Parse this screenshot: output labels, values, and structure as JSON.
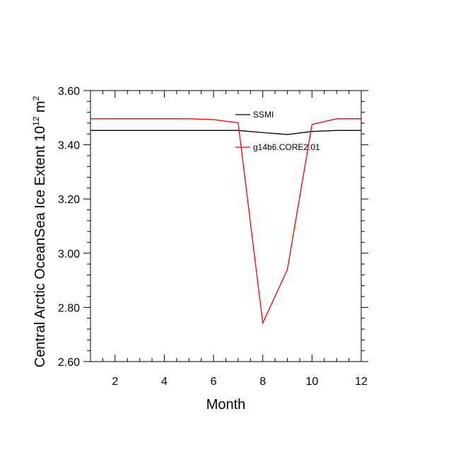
{
  "chart_data": {
    "type": "line",
    "xlabel": "Month",
    "ylabel_main": "Central Arctic OceanSea Ice Extent 10",
    "ylabel_exponent": "12",
    "ylabel_unit": " m",
    "ylabel_unit_exponent": "2",
    "xlim": [
      1,
      12
    ],
    "ylim": [
      2.6,
      3.6
    ],
    "x_ticks": [
      2,
      4,
      6,
      8,
      10,
      12
    ],
    "x_tick_labels": [
      "2",
      "4",
      "6",
      "8",
      "10",
      "12"
    ],
    "y_ticks": [
      2.6,
      2.8,
      3.0,
      3.2,
      3.4,
      3.6
    ],
    "y_tick_labels": [
      "2.60",
      "2.80",
      "3.00",
      "3.20",
      "3.40",
      "3.60"
    ],
    "grid": false,
    "legend_position": "top-right",
    "x": [
      1,
      2,
      3,
      4,
      5,
      6,
      7,
      8,
      9,
      10,
      11,
      12
    ],
    "series": [
      {
        "name": "SSMI",
        "color": "#000000",
        "values": [
          3.453,
          3.453,
          3.453,
          3.453,
          3.453,
          3.453,
          3.453,
          3.445,
          3.438,
          3.449,
          3.453,
          3.453
        ]
      },
      {
        "name": "g14b6.CORE2.01",
        "color": "#ee0000",
        "values": [
          3.496,
          3.496,
          3.496,
          3.496,
          3.496,
          3.493,
          3.481,
          2.742,
          2.94,
          3.475,
          3.496,
          3.496
        ]
      }
    ]
  }
}
